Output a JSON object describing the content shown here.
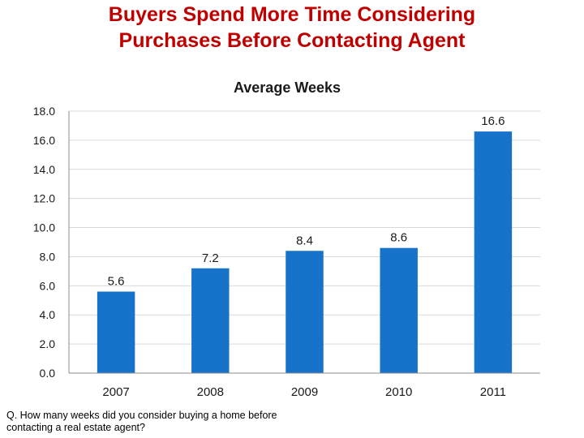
{
  "slide": {
    "title_line1": "Buyers Spend More Time Considering",
    "title_line2": "Purchases Before Contacting Agent",
    "footnote_line1": "Q. How many weeks did you consider buying a home before",
    "footnote_line2": "contacting a real estate agent?",
    "title_color": "#c00000"
  },
  "chart_data": {
    "type": "bar",
    "title": "Average Weeks",
    "xlabel": "",
    "ylabel": "",
    "categories": [
      "2007",
      "2008",
      "2009",
      "2010",
      "2011"
    ],
    "values": [
      5.6,
      7.2,
      8.4,
      8.6,
      16.6
    ],
    "data_labels": [
      "5.6",
      "7.2",
      "8.4",
      "8.6",
      "16.6"
    ],
    "ylim": [
      0,
      18
    ],
    "yticks": [
      "0.0",
      "2.0",
      "4.0",
      "6.0",
      "8.0",
      "10.0",
      "12.0",
      "14.0",
      "16.0",
      "18.0"
    ],
    "grid": true,
    "legend": false,
    "bar_color": "#1773c9"
  }
}
